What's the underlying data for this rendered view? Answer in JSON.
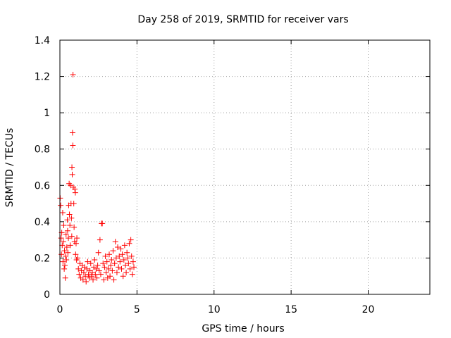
{
  "chart_data": {
    "type": "scatter",
    "title": "Day 258 of 2019, SRMTID for receiver vars",
    "xlabel": "GPS time / hours",
    "ylabel": "SRMTID / TECUs",
    "xlim": [
      0,
      24
    ],
    "ylim": [
      0,
      1.4
    ],
    "xticks": [
      0,
      5,
      10,
      15,
      20
    ],
    "xtick_labels": [
      "0",
      "5",
      "10",
      "15",
      "20"
    ],
    "yticks": [
      0,
      0.2,
      0.4,
      0.6,
      0.8,
      1,
      1.2,
      1.4
    ],
    "ytick_labels": [
      "0",
      "0.2",
      "0.4",
      "0.6",
      "0.8",
      "1",
      "1.2",
      "1.4"
    ],
    "grid": true,
    "marker": "+",
    "color": "#ff0000",
    "series": [
      {
        "name": "receiver vars",
        "points": [
          [
            0.02,
            0.53
          ],
          [
            0.05,
            0.49
          ],
          [
            0.08,
            0.31
          ],
          [
            0.1,
            0.22
          ],
          [
            0.12,
            0.34
          ],
          [
            0.15,
            0.27
          ],
          [
            0.18,
            0.45
          ],
          [
            0.2,
            0.18
          ],
          [
            0.22,
            0.29
          ],
          [
            0.25,
            0.38
          ],
          [
            0.28,
            0.14
          ],
          [
            0.3,
            0.24
          ],
          [
            0.32,
            0.16
          ],
          [
            0.35,
            0.09
          ],
          [
            0.37,
            0.21
          ],
          [
            0.4,
            0.33
          ],
          [
            0.42,
            0.19
          ],
          [
            0.45,
            0.26
          ],
          [
            0.48,
            0.41
          ],
          [
            0.5,
            0.35
          ],
          [
            0.52,
            0.23
          ],
          [
            0.55,
            0.31
          ],
          [
            0.57,
            0.49
          ],
          [
            0.6,
            0.61
          ],
          [
            0.62,
            0.44
          ],
          [
            0.65,
            0.38
          ],
          [
            0.67,
            0.27
          ],
          [
            0.7,
            0.6
          ],
          [
            0.72,
            0.5
          ],
          [
            0.75,
            0.42
          ],
          [
            0.77,
            0.32
          ],
          [
            0.78,
            0.7
          ],
          [
            0.8,
            0.66
          ],
          [
            0.82,
            0.89
          ],
          [
            0.84,
            0.82
          ],
          [
            0.85,
            1.21
          ],
          [
            0.87,
            0.59
          ],
          [
            0.9,
            0.5
          ],
          [
            0.92,
            0.37
          ],
          [
            0.95,
            0.29
          ],
          [
            0.97,
            0.58
          ],
          [
            1.0,
            0.56
          ],
          [
            1.02,
            0.22
          ],
          [
            1.05,
            0.28
          ],
          [
            1.08,
            0.19
          ],
          [
            1.1,
            0.31
          ],
          [
            1.15,
            0.2
          ],
          [
            1.2,
            0.14
          ],
          [
            1.25,
            0.11
          ],
          [
            1.3,
            0.17
          ],
          [
            1.35,
            0.09
          ],
          [
            1.4,
            0.13
          ],
          [
            1.45,
            0.16
          ],
          [
            1.5,
            0.08
          ],
          [
            1.55,
            0.12
          ],
          [
            1.6,
            0.15
          ],
          [
            1.65,
            0.1
          ],
          [
            1.7,
            0.07
          ],
          [
            1.75,
            0.14
          ],
          [
            1.8,
            0.18
          ],
          [
            1.85,
            0.11
          ],
          [
            1.9,
            0.09
          ],
          [
            1.95,
            0.13
          ],
          [
            2.0,
            0.17
          ],
          [
            2.05,
            0.1
          ],
          [
            2.1,
            0.12
          ],
          [
            2.15,
            0.08
          ],
          [
            2.2,
            0.15
          ],
          [
            2.25,
            0.19
          ],
          [
            2.3,
            0.11
          ],
          [
            2.35,
            0.14
          ],
          [
            2.4,
            0.09
          ],
          [
            2.45,
            0.16
          ],
          [
            2.5,
            0.23
          ],
          [
            2.55,
            0.13
          ],
          [
            2.6,
            0.3
          ],
          [
            2.65,
            0.11
          ],
          [
            2.7,
            0.39
          ],
          [
            2.75,
            0.39
          ],
          [
            2.8,
            0.17
          ],
          [
            2.85,
            0.08
          ],
          [
            2.9,
            0.15
          ],
          [
            2.95,
            0.21
          ],
          [
            3.0,
            0.12
          ],
          [
            3.05,
            0.18
          ],
          [
            3.1,
            0.09
          ],
          [
            3.15,
            0.14
          ],
          [
            3.2,
            0.22
          ],
          [
            3.25,
            0.1
          ],
          [
            3.3,
            0.16
          ],
          [
            3.35,
            0.19
          ],
          [
            3.4,
            0.13
          ],
          [
            3.45,
            0.24
          ],
          [
            3.5,
            0.08
          ],
          [
            3.55,
            0.17
          ],
          [
            3.6,
            0.29
          ],
          [
            3.65,
            0.2
          ],
          [
            3.7,
            0.12
          ],
          [
            3.75,
            0.26
          ],
          [
            3.8,
            0.15
          ],
          [
            3.85,
            0.21
          ],
          [
            3.9,
            0.18
          ],
          [
            3.95,
            0.25
          ],
          [
            4.0,
            0.14
          ],
          [
            4.05,
            0.22
          ],
          [
            4.1,
            0.1
          ],
          [
            4.15,
            0.19
          ],
          [
            4.2,
            0.27
          ],
          [
            4.25,
            0.16
          ],
          [
            4.3,
            0.12
          ],
          [
            4.35,
            0.23
          ],
          [
            4.4,
            0.2
          ],
          [
            4.45,
            0.17
          ],
          [
            4.5,
            0.28
          ],
          [
            4.55,
            0.14
          ],
          [
            4.6,
            0.3
          ],
          [
            4.65,
            0.21
          ],
          [
            4.7,
            0.11
          ],
          [
            4.75,
            0.18
          ],
          [
            4.8,
            0.15
          ]
        ]
      }
    ]
  }
}
